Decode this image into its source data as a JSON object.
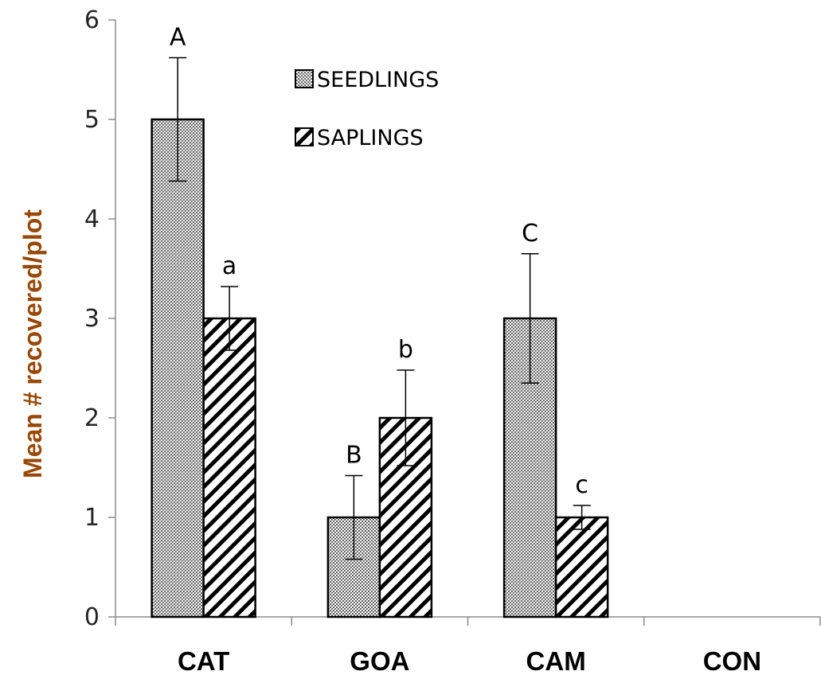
{
  "chart_data": {
    "type": "bar",
    "title": "",
    "xlabel": "",
    "ylabel": "Mean # recovered/plot",
    "ylim": [
      0,
      6
    ],
    "yticks": [
      "0",
      "1",
      "2",
      "3",
      "4",
      "5",
      "6"
    ],
    "grid": false,
    "legend_position": "top-center",
    "categories": [
      "CAT",
      "GOA",
      "CAM",
      "CON"
    ],
    "series": [
      {
        "name": "SEEDLINGS",
        "pattern": "crosshatch",
        "values": [
          5,
          1,
          3,
          0
        ],
        "errors": [
          0.62,
          0.42,
          0.65,
          0
        ],
        "labels": [
          "A",
          "B",
          "C",
          ""
        ]
      },
      {
        "name": "SAPLINGS",
        "pattern": "diagonal-stripes",
        "values": [
          3,
          2,
          1,
          0
        ],
        "errors": [
          0.32,
          0.48,
          0.12,
          0
        ],
        "labels": [
          "a",
          "b",
          "c",
          ""
        ]
      }
    ],
    "colors": {
      "ylabel": "#984807",
      "axis": "#8c8c8c",
      "bar_edge": "#000000",
      "text": "#000000"
    }
  }
}
